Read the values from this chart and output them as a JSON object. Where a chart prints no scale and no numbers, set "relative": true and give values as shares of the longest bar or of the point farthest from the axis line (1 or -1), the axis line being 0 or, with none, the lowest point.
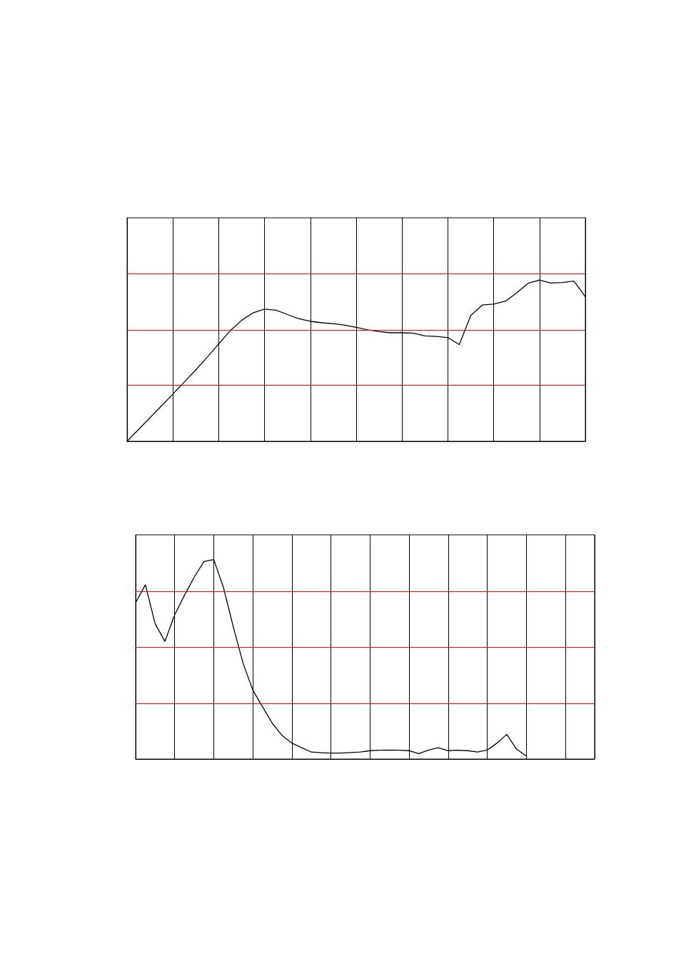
{
  "chart_data": [
    {
      "type": "line",
      "relative": true,
      "grid": "x",
      "marker": "none",
      "line_style": "solid",
      "categories": [
        null,
        null,
        null,
        null,
        null,
        null,
        null,
        null,
        null,
        null,
        null,
        null,
        null,
        null,
        null,
        null,
        null,
        null,
        null,
        null,
        null,
        null,
        null,
        null,
        null,
        null,
        null,
        null,
        null,
        null,
        null,
        null,
        null,
        null,
        null,
        null,
        null,
        null,
        null,
        null,
        null
      ],
      "series": [
        {
          "color": "#000000",
          "values": [
            0,
            0.073,
            0.146,
            0.219,
            0.293,
            0.368,
            0.443,
            0.522,
            0.604,
            0.685,
            0.75,
            0.797,
            0.82,
            0.813,
            0.786,
            0.76,
            0.744,
            0.735,
            0.729,
            0.72,
            0.707,
            0.691,
            0.68,
            0.673,
            0.673,
            0.67,
            0.654,
            0.65,
            0.643,
            0.6,
            0.78,
            0.845,
            0.851,
            0.868,
            0.92,
            0.98,
            1,
            0.981,
            0.985,
            0.994,
            0.896
          ]
        }
      ],
      "ref_lines": [
        {
          "axis": "y",
          "value": 1.039,
          "color": "#ff0000"
        },
        {
          "axis": "y",
          "value": 0.692,
          "color": "#ff0000"
        },
        {
          "axis": "y",
          "value": 0.347,
          "color": "#ff0000"
        }
      ]
    },
    {
      "type": "line",
      "relative": true,
      "grid": "x",
      "marker": "none",
      "line_style": "solid",
      "categories": [
        null,
        null,
        null,
        null,
        null,
        null,
        null,
        null,
        null,
        null,
        null,
        null,
        null,
        null,
        null,
        null,
        null,
        null,
        null,
        null,
        null,
        null,
        null,
        null,
        null,
        null,
        null,
        null,
        null,
        null,
        null,
        null,
        null,
        null,
        null,
        null,
        null,
        null,
        null,
        null,
        null,
        null,
        null,
        null,
        null,
        null,
        null,
        null
      ],
      "series": [
        {
          "color": "#000000",
          "values": [
            0.784,
            0.874,
            0.678,
            0.59,
            0.723,
            0.821,
            0.912,
            0.99,
            1,
            0.859,
            0.663,
            0.481,
            0.345,
            0.262,
            0.179,
            0.118,
            0.08,
            0.057,
            0.035,
            0.032,
            0.03,
            0.03,
            0.033,
            0.035,
            0.042,
            0.044,
            0.045,
            0.044,
            0.042,
            0.027,
            0.045,
            0.057,
            0.042,
            0.044,
            0.042,
            0.035,
            0.045,
            0.08,
            0.124,
            0.05,
            0.015,
            null,
            null,
            null,
            null,
            null,
            null,
            null
          ]
        }
      ],
      "ref_lines": [
        {
          "axis": "y",
          "value": 0.844,
          "color": "#ff0000"
        },
        {
          "axis": "y",
          "value": 0.564,
          "color": "#ff0000"
        },
        {
          "axis": "y",
          "value": 0.281,
          "color": "#ff0000"
        }
      ]
    }
  ]
}
